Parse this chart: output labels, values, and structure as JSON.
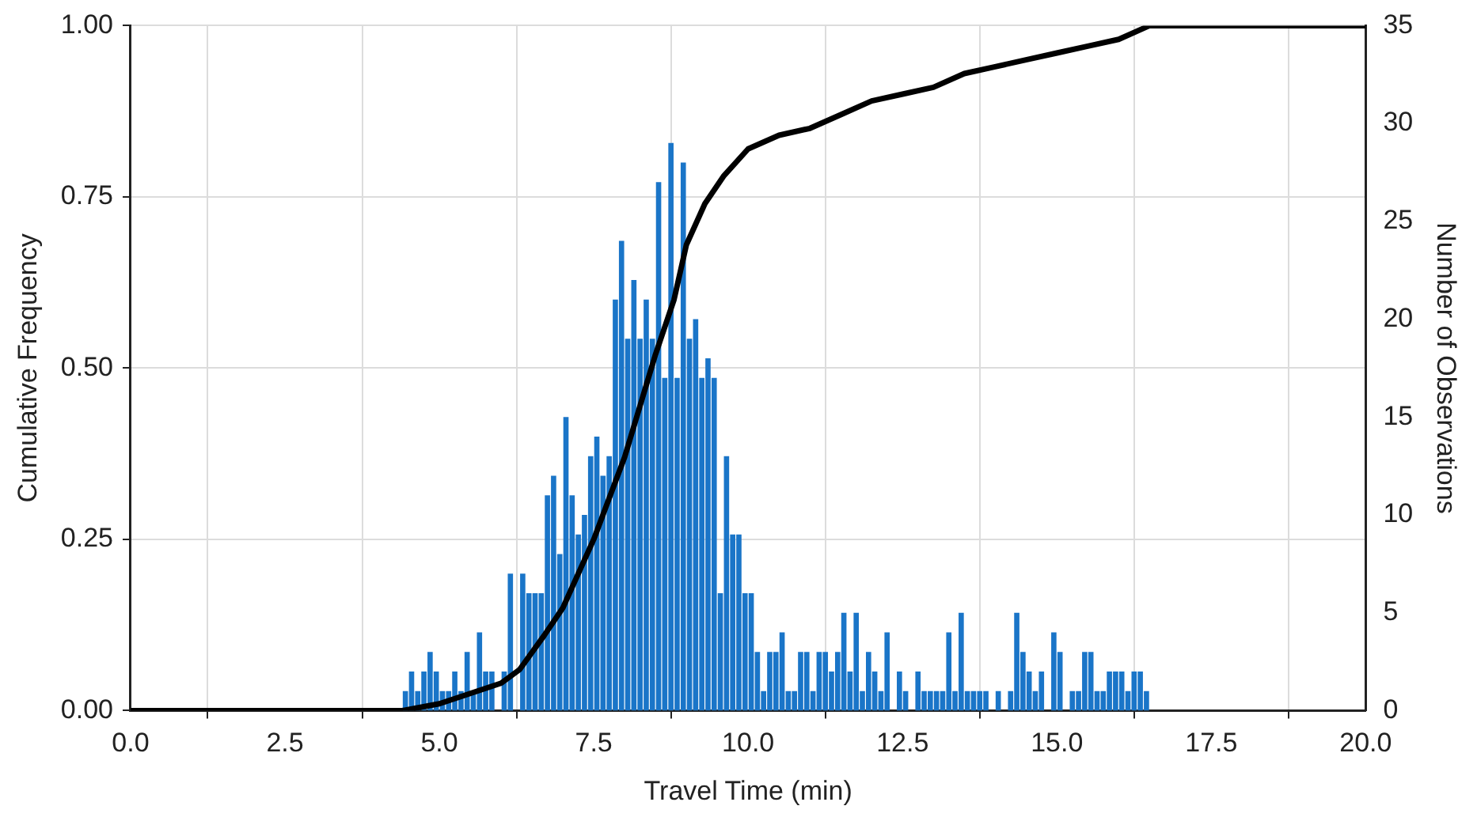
{
  "chart_data": {
    "type": "histogram",
    "xlabel": "Travel Time (min)",
    "ylabel": "Cumulative Frequency",
    "y2label": "Number of Observations",
    "xlim": [
      0,
      20
    ],
    "xticks": [
      {
        "value": 0,
        "label": "0.0"
      },
      {
        "value": 2.5,
        "label": "2.5"
      },
      {
        "value": 5,
        "label": "5.0"
      },
      {
        "value": 7.5,
        "label": "7.5"
      },
      {
        "value": 10,
        "label": "10.0"
      },
      {
        "value": 12.5,
        "label": "12.5"
      },
      {
        "value": 15,
        "label": "15.0"
      },
      {
        "value": 17.5,
        "label": "17.5"
      },
      {
        "value": 20,
        "label": "20.0"
      }
    ],
    "ylim": [
      0,
      1
    ],
    "yticks": [
      {
        "value": 0,
        "label": "0.00"
      },
      {
        "value": 0.25,
        "label": "0.25"
      },
      {
        "value": 0.5,
        "label": "0.50"
      },
      {
        "value": 0.75,
        "label": "0.75"
      },
      {
        "value": 1,
        "label": "1.00"
      }
    ],
    "y2lim": [
      0,
      35
    ],
    "y2ticks": [
      0,
      5,
      10,
      15,
      20,
      25,
      30,
      35
    ],
    "grid": true,
    "series": [
      {
        "type": "histogram",
        "axis": "y2",
        "color": "#1a75c8",
        "bins": [
          4.4,
          4.5,
          4.6,
          4.7,
          4.8,
          4.9,
          5.0,
          5.1,
          5.2,
          5.3,
          5.4,
          5.5,
          5.6,
          5.7,
          5.8,
          5.9,
          6.0,
          6.1,
          6.2,
          6.3,
          6.4,
          6.5,
          6.6,
          6.7,
          6.8,
          6.9,
          7.0,
          7.1,
          7.2,
          7.3,
          7.4,
          7.5,
          7.6,
          7.7,
          7.8,
          7.9,
          8.0,
          8.1,
          8.2,
          8.3,
          8.4,
          8.5,
          8.6,
          8.7,
          8.8,
          8.9,
          9.0,
          9.1,
          9.2,
          9.3,
          9.4,
          9.5,
          9.6,
          9.7,
          9.8,
          9.9,
          10.0,
          10.1,
          10.2,
          10.3,
          10.4,
          10.5,
          10.6,
          10.7,
          10.8,
          10.9,
          11.0,
          11.1,
          11.2,
          11.3,
          11.4,
          11.5,
          11.6,
          11.7,
          11.8,
          11.9,
          12.0,
          12.1,
          12.2,
          12.3,
          12.4,
          12.5,
          12.6,
          12.7,
          12.8,
          12.9,
          13.0,
          13.1,
          13.2,
          13.3,
          13.4,
          13.5,
          13.6,
          13.7,
          13.8,
          13.9,
          14.0,
          14.1,
          14.2,
          14.3,
          14.4,
          14.5,
          14.6,
          14.7,
          14.8,
          14.9,
          15.0,
          15.1,
          15.2,
          15.3,
          15.4,
          15.5,
          15.6,
          15.7,
          15.8,
          15.9,
          16.0,
          16.1,
          16.2,
          16.3,
          16.4,
          16.5
        ],
        "values": [
          1,
          2,
          1,
          2,
          3,
          2,
          1,
          1,
          2,
          1,
          3,
          1,
          4,
          2,
          2,
          0,
          2,
          7,
          0,
          7,
          6,
          6,
          6,
          11,
          12,
          8,
          15,
          11,
          9,
          10,
          13,
          14,
          12,
          13,
          21,
          24,
          19,
          22,
          19,
          21,
          19,
          27,
          17,
          29,
          17,
          28,
          19,
          20,
          17,
          18,
          17,
          6,
          13,
          9,
          9,
          6,
          6,
          3,
          1,
          3,
          3,
          4,
          1,
          1,
          3,
          3,
          1,
          3,
          3,
          2,
          3,
          5,
          2,
          5,
          1,
          3,
          2,
          1,
          4,
          0,
          2,
          1,
          0,
          2,
          1,
          1,
          1,
          1,
          4,
          1,
          5,
          1,
          1,
          1,
          1,
          0,
          1,
          0,
          1,
          5,
          3,
          2,
          1,
          2,
          0,
          4,
          3,
          0,
          1,
          1,
          3,
          3,
          1,
          1,
          2,
          2,
          2,
          1,
          2,
          2,
          1
        ]
      },
      {
        "type": "line",
        "color": "#000000",
        "x": [
          0,
          4.4,
          5,
          5.5,
          6,
          6.3,
          6.7,
          7,
          7.5,
          8,
          8.5,
          8.8,
          9,
          9.3,
          9.6,
          10,
          10.5,
          11,
          11.5,
          12,
          12.5,
          13,
          13.5,
          14,
          14.5,
          15,
          15.5,
          16,
          16.5,
          20
        ],
        "values": [
          0,
          0,
          0.01,
          0.025,
          0.04,
          0.06,
          0.11,
          0.15,
          0.25,
          0.37,
          0.52,
          0.6,
          0.68,
          0.74,
          0.78,
          0.82,
          0.84,
          0.85,
          0.87,
          0.89,
          0.9,
          0.91,
          0.93,
          0.94,
          0.95,
          0.96,
          0.97,
          0.98,
          1,
          1
        ]
      }
    ]
  }
}
